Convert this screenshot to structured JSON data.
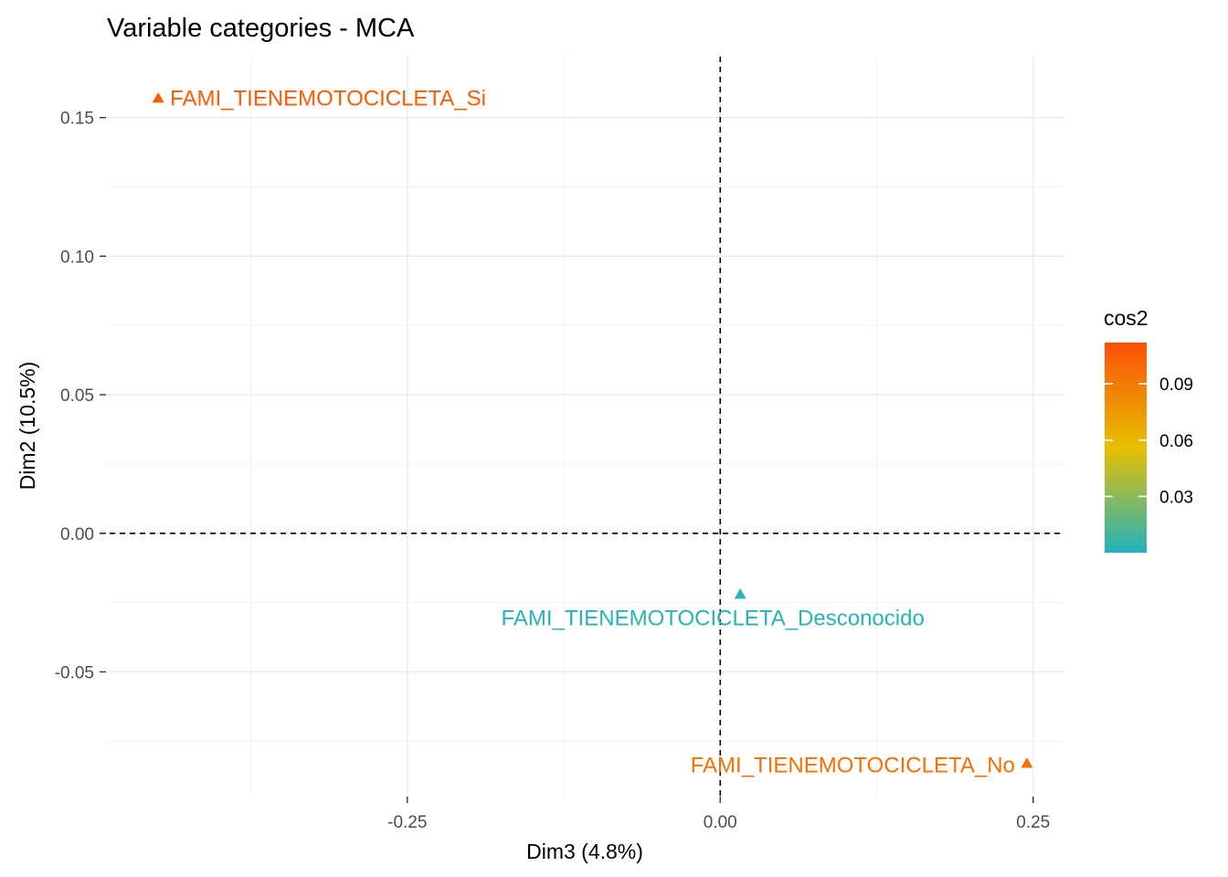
{
  "chart_data": {
    "type": "scatter",
    "title": "Variable categories - MCA",
    "xlabel": "Dim3 (4.8%)",
    "ylabel": "Dim2 (10.5%)",
    "xlim": [
      -0.49,
      0.275
    ],
    "ylim": [
      -0.095,
      0.172
    ],
    "x_ticks": [
      -0.25,
      0.0,
      0.25
    ],
    "x_tick_labels": [
      "-0.25",
      "0.00",
      "0.25"
    ],
    "y_ticks": [
      -0.05,
      0.0,
      0.05,
      0.1,
      0.15
    ],
    "y_tick_labels": [
      "-0.05",
      "0.00",
      "0.05",
      "0.10",
      "0.15"
    ],
    "grid": true,
    "reference_lines": {
      "x": 0,
      "y": 0,
      "style": "dashed"
    },
    "points": [
      {
        "label": "FAMI_TIENEMOTOCICLETA_Si",
        "x": -0.449,
        "y": 0.157,
        "cos2": 0.105,
        "label_position": "right"
      },
      {
        "label": "FAMI_TIENEMOTOCICLETA_Desconocido",
        "x": 0.016,
        "y": -0.022,
        "cos2": 0.002,
        "label_position": "below"
      },
      {
        "label": "FAMI_TIENEMOTOCICLETA_No",
        "x": 0.245,
        "y": -0.083,
        "cos2": 0.095,
        "label_position": "left"
      }
    ],
    "legend": {
      "title": "cos2",
      "placement": "right",
      "range": [
        0.0,
        0.112
      ],
      "ticks": [
        0.03,
        0.06,
        0.09
      ],
      "tick_labels": [
        "0.03",
        "0.06",
        "0.09"
      ],
      "gradient": [
        "#22b2bf",
        "#e7bf00",
        "#fc4e07"
      ]
    }
  }
}
